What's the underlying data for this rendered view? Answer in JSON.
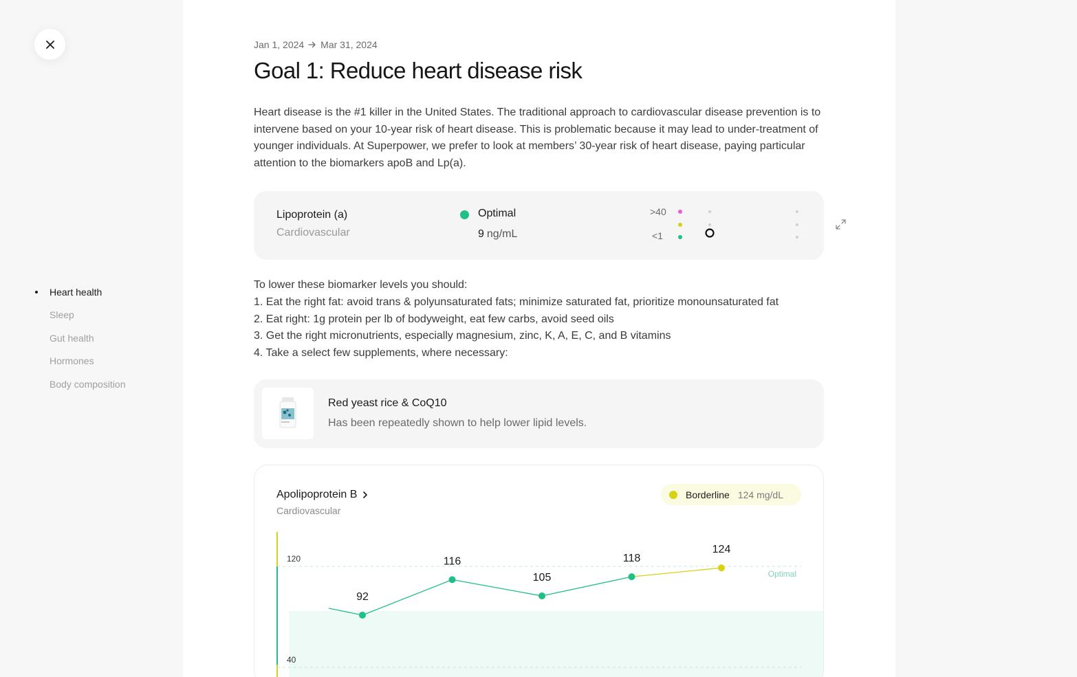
{
  "nav": {
    "items": [
      {
        "label": "Heart health",
        "active": true
      },
      {
        "label": "Sleep",
        "active": false
      },
      {
        "label": "Gut health",
        "active": false
      },
      {
        "label": "Hormones",
        "active": false
      },
      {
        "label": "Body composition",
        "active": false
      }
    ]
  },
  "goal": {
    "date_start": "Jan 1, 2024",
    "date_end": "Mar 31, 2024",
    "title": "Goal 1: Reduce heart disease risk",
    "intro": "Heart disease is the #1 killer in the United States. The traditional approach to cardiovascular disease prevention is to intervene based on your 10-year risk of heart disease. This is problematic because it may lead to under-treatment of younger individuals. At Superpower, we prefer to look at members’ 30-year risk of heart disease, paying particular attention to the biomarkers apoB and Lp(a)."
  },
  "lpa_card": {
    "name": "Lipoprotein (a)",
    "category": "Cardiovascular",
    "status": "Optimal",
    "value": "9",
    "unit": "ng/mL",
    "range_high": ">40",
    "range_low": "<1",
    "colors": {
      "high": "#ec5fd0",
      "mid": "#d7d215",
      "low": "#1fbf86"
    }
  },
  "steps": [
    "To lower these biomarker levels you should:",
    "1. Eat the right fat: avoid trans & polyunsaturated fats; minimize saturated fat, prioritize monounsaturated fat",
    "2. Eat right: 1g protein per lb of bodyweight, eat few carbs, avoid seed oils",
    "3. Get the right micronutrients, especially magnesium, zinc, K, A, E, C, and B vitamins",
    "4. Take a select few supplements, where necessary:"
  ],
  "supplement": {
    "name": "Red yeast rice & CoQ10",
    "description": "Has been repeatedly shown to help lower lipid levels."
  },
  "apob_card": {
    "name": "Apolipoprotein B",
    "category": "Cardiovascular",
    "badge_label": "Borderline",
    "badge_value": "124 mg/dL",
    "optimal_label": "Optimal",
    "colors": {
      "optimal": "#1fbf86",
      "borderline": "#d7d215"
    }
  },
  "chart_data": {
    "type": "line",
    "title": "Apolipoprotein B",
    "xlabel": "",
    "ylabel": "",
    "y_ticks": [
      120,
      40
    ],
    "optimal_upper": 120,
    "points": [
      {
        "value": 92,
        "status": "optimal"
      },
      {
        "value": 116,
        "status": "optimal"
      },
      {
        "value": 105,
        "status": "optimal"
      },
      {
        "value": 118,
        "status": "optimal"
      },
      {
        "value": 124,
        "status": "borderline"
      }
    ]
  }
}
